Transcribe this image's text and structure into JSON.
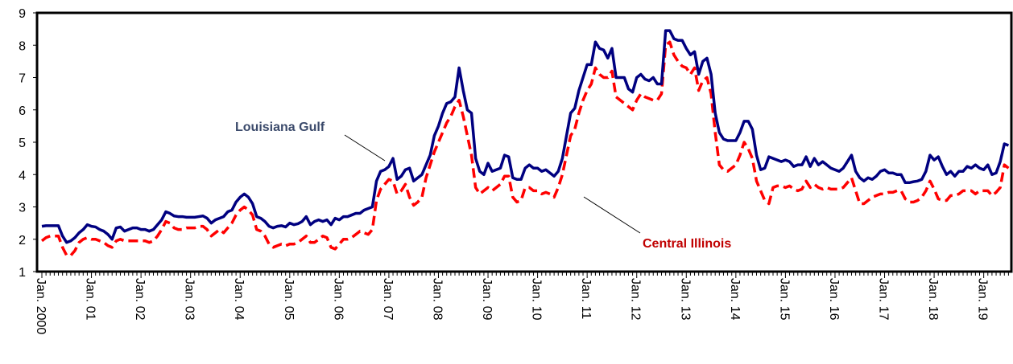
{
  "chart_data": {
    "type": "line",
    "categories": [
      "Jan. 2000",
      null,
      null,
      null,
      null,
      null,
      null,
      null,
      null,
      null,
      null,
      null,
      "Jan. 01",
      null,
      null,
      null,
      null,
      null,
      null,
      null,
      null,
      null,
      null,
      null,
      "Jan. 02",
      null,
      null,
      null,
      null,
      null,
      null,
      null,
      null,
      null,
      null,
      null,
      "Jan. 03",
      null,
      null,
      null,
      null,
      null,
      null,
      null,
      null,
      null,
      null,
      null,
      "Jan. 04",
      null,
      null,
      null,
      null,
      null,
      null,
      null,
      null,
      null,
      null,
      null,
      "Jan. 05",
      null,
      null,
      null,
      null,
      null,
      null,
      null,
      null,
      null,
      null,
      null,
      "Jan. 06",
      null,
      null,
      null,
      null,
      null,
      null,
      null,
      null,
      null,
      null,
      null,
      "Jan. 07",
      null,
      null,
      null,
      null,
      null,
      null,
      null,
      null,
      null,
      null,
      null,
      "Jan. 08",
      null,
      null,
      null,
      null,
      null,
      null,
      null,
      null,
      null,
      null,
      null,
      "Jan. 09",
      null,
      null,
      null,
      null,
      null,
      null,
      null,
      null,
      null,
      null,
      null,
      "Jan. 10",
      null,
      null,
      null,
      null,
      null,
      null,
      null,
      null,
      null,
      null,
      null,
      "Jan. 11",
      null,
      null,
      null,
      null,
      null,
      null,
      null,
      null,
      null,
      null,
      null,
      "Jan. 12",
      null,
      null,
      null,
      null,
      null,
      null,
      null,
      null,
      null,
      null,
      null,
      "Jan. 13",
      null,
      null,
      null,
      null,
      null,
      null,
      null,
      null,
      null,
      null,
      null,
      "Jan. 14",
      null,
      null,
      null,
      null,
      null,
      null,
      null,
      null,
      null,
      null,
      null,
      "Jan. 15",
      null,
      null,
      null,
      null,
      null,
      null,
      null,
      null,
      null,
      null,
      null,
      "Jan. 16",
      null,
      null,
      null,
      null,
      null,
      null,
      null,
      null,
      null,
      null,
      null,
      "Jan. 17",
      null,
      null,
      null,
      null,
      null,
      null,
      null,
      null,
      null,
      null,
      null,
      "Jan. 18",
      null,
      null,
      null,
      null,
      null,
      null,
      null,
      null,
      null,
      null,
      null,
      "Jan. 19",
      null,
      null,
      null,
      null,
      null,
      null
    ],
    "series": [
      {
        "name": "Louisiana Gulf",
        "color": "#000080",
        "style": "solid",
        "values": [
          2.4,
          2.42,
          2.42,
          2.42,
          2.42,
          2.1,
          1.9,
          1.95,
          2.05,
          2.2,
          2.3,
          2.45,
          2.4,
          2.38,
          2.3,
          2.25,
          2.15,
          2.0,
          2.35,
          2.38,
          2.25,
          2.3,
          2.35,
          2.35,
          2.3,
          2.3,
          2.25,
          2.3,
          2.45,
          2.6,
          2.85,
          2.8,
          2.72,
          2.7,
          2.7,
          2.68,
          2.68,
          2.68,
          2.7,
          2.72,
          2.65,
          2.5,
          2.6,
          2.65,
          2.7,
          2.85,
          2.9,
          3.15,
          3.3,
          3.4,
          3.3,
          3.1,
          2.7,
          2.65,
          2.55,
          2.4,
          2.35,
          2.4,
          2.42,
          2.38,
          2.5,
          2.45,
          2.48,
          2.55,
          2.7,
          2.45,
          2.55,
          2.6,
          2.55,
          2.6,
          2.45,
          2.65,
          2.6,
          2.7,
          2.7,
          2.75,
          2.8,
          2.8,
          2.9,
          2.95,
          3.0,
          3.8,
          4.1,
          4.15,
          4.25,
          4.5,
          3.85,
          3.95,
          4.15,
          4.2,
          3.8,
          3.9,
          4.0,
          4.3,
          4.6,
          5.2,
          5.5,
          5.9,
          6.2,
          6.25,
          6.4,
          7.3,
          6.6,
          6.0,
          5.9,
          4.5,
          4.1,
          4.0,
          4.35,
          4.1,
          4.15,
          4.2,
          4.6,
          4.55,
          3.9,
          3.85,
          3.85,
          4.2,
          4.3,
          4.2,
          4.2,
          4.1,
          4.15,
          4.05,
          3.95,
          4.1,
          4.5,
          5.2,
          5.9,
          6.05,
          6.6,
          7.0,
          7.4,
          7.4,
          8.1,
          7.9,
          7.85,
          7.6,
          7.9,
          7.0,
          7.0,
          7.0,
          6.65,
          6.55,
          7.0,
          7.1,
          6.95,
          6.9,
          7.0,
          6.8,
          6.8,
          8.45,
          8.45,
          8.2,
          8.15,
          8.15,
          7.9,
          7.7,
          7.8,
          7.1,
          7.5,
          7.6,
          7.1,
          5.9,
          5.3,
          5.1,
          5.05,
          5.05,
          5.05,
          5.3,
          5.65,
          5.65,
          5.4,
          4.6,
          4.15,
          4.2,
          4.55,
          4.5,
          4.45,
          4.4,
          4.45,
          4.4,
          4.25,
          4.3,
          4.3,
          4.55,
          4.25,
          4.5,
          4.3,
          4.4,
          4.3,
          4.2,
          4.15,
          4.1,
          4.2,
          4.4,
          4.6,
          4.1,
          3.9,
          3.8,
          3.9,
          3.85,
          3.95,
          4.1,
          4.15,
          4.05,
          4.05,
          4.0,
          4.0,
          3.75,
          3.75,
          3.78,
          3.8,
          3.85,
          4.1,
          4.6,
          4.45,
          4.55,
          4.25,
          4.0,
          4.1,
          3.95,
          4.1,
          4.1,
          4.25,
          4.2,
          4.3,
          4.2,
          4.15,
          4.3,
          4.0,
          4.05,
          4.4,
          4.95,
          4.9
        ]
      },
      {
        "name": "Central Illinois",
        "color": "#ff0000",
        "style": "dashed",
        "values": [
          1.95,
          2.05,
          2.1,
          2.1,
          2.1,
          1.75,
          1.5,
          1.5,
          1.65,
          1.9,
          2.0,
          2.05,
          2.0,
          2.0,
          1.95,
          1.9,
          1.8,
          1.75,
          1.95,
          2.0,
          1.95,
          1.95,
          1.95,
          1.95,
          1.95,
          1.95,
          1.9,
          1.95,
          2.1,
          2.3,
          2.55,
          2.5,
          2.35,
          2.3,
          2.3,
          2.35,
          2.35,
          2.35,
          2.4,
          2.4,
          2.3,
          2.1,
          2.2,
          2.3,
          2.2,
          2.35,
          2.5,
          2.75,
          2.9,
          3.0,
          2.9,
          2.75,
          2.3,
          2.25,
          2.1,
          1.85,
          1.75,
          1.8,
          1.85,
          1.8,
          1.85,
          1.85,
          1.9,
          2.0,
          2.1,
          1.9,
          1.9,
          2.0,
          2.1,
          2.05,
          1.75,
          1.7,
          1.85,
          2.0,
          2.0,
          2.05,
          2.15,
          2.25,
          2.2,
          2.15,
          2.3,
          3.2,
          3.55,
          3.7,
          3.85,
          3.8,
          3.4,
          3.5,
          3.7,
          3.3,
          3.05,
          3.15,
          3.3,
          3.9,
          4.3,
          4.7,
          5.0,
          5.3,
          5.6,
          5.8,
          6.1,
          6.3,
          5.8,
          5.2,
          4.6,
          3.6,
          3.4,
          3.5,
          3.6,
          3.5,
          3.6,
          3.7,
          3.95,
          3.95,
          3.3,
          3.15,
          3.2,
          3.6,
          3.6,
          3.5,
          3.5,
          3.4,
          3.45,
          3.4,
          3.3,
          3.6,
          4.0,
          4.6,
          5.2,
          5.4,
          5.9,
          6.3,
          6.6,
          6.8,
          7.3,
          7.1,
          7.0,
          7.0,
          7.2,
          6.4,
          6.3,
          6.2,
          6.1,
          6.0,
          6.3,
          6.5,
          6.4,
          6.35,
          6.3,
          6.3,
          6.5,
          8.0,
          8.1,
          7.7,
          7.5,
          7.35,
          7.3,
          7.1,
          7.3,
          6.6,
          6.9,
          7.0,
          6.5,
          5.3,
          4.3,
          4.15,
          4.1,
          4.2,
          4.3,
          4.6,
          5.0,
          4.8,
          4.5,
          3.8,
          3.5,
          3.2,
          3.1,
          3.6,
          3.65,
          3.65,
          3.6,
          3.65,
          3.55,
          3.5,
          3.55,
          3.8,
          3.6,
          3.7,
          3.6,
          3.55,
          3.6,
          3.55,
          3.55,
          3.55,
          3.6,
          3.75,
          3.9,
          3.5,
          3.1,
          3.1,
          3.2,
          3.3,
          3.35,
          3.4,
          3.4,
          3.45,
          3.45,
          3.5,
          3.5,
          3.25,
          3.15,
          3.15,
          3.2,
          3.3,
          3.5,
          3.8,
          3.55,
          3.25,
          3.2,
          3.2,
          3.35,
          3.35,
          3.4,
          3.5,
          3.5,
          3.5,
          3.4,
          3.5,
          3.5,
          3.5,
          3.35,
          3.45,
          3.6,
          4.3,
          4.2
        ]
      }
    ],
    "annotations": [
      {
        "text": "Louisiana Gulf",
        "color": "#3b4a6b"
      },
      {
        "text": "Central Illinois",
        "color": "#c00000"
      }
    ],
    "ylim": [
      1,
      9
    ],
    "yticks": [
      1,
      2,
      3,
      4,
      5,
      6,
      7,
      8,
      9
    ],
    "grid": false
  }
}
